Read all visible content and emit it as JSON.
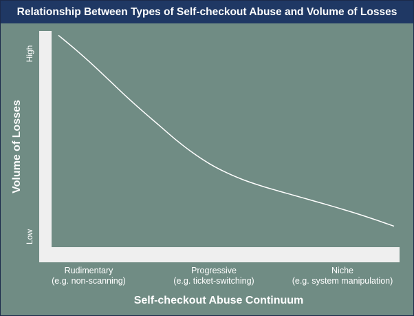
{
  "colors": {
    "title_bar": "#1f3864",
    "plot_background": "#708c84",
    "axis_bar": "#efefef",
    "curve": "#ffffff",
    "text": "#ffffff",
    "tick_text": "#ffffff"
  },
  "chart_data": {
    "type": "line",
    "title": "Relationship Between Types of Self-checkout Abuse and Volume of Losses",
    "xlabel": "Self-checkout Abuse Continuum",
    "ylabel": "Volume of Losses",
    "x_categories": [
      {
        "line1": "Rudimentary",
        "line2": "(e.g. non-scanning)"
      },
      {
        "line1": "Progressive",
        "line2": "(e.g. ticket-switching)"
      },
      {
        "line1": "Niche",
        "line2": "(e.g. system manipulation)"
      }
    ],
    "y_ticks": [
      "Low",
      "High"
    ],
    "xlim": [
      0,
      1
    ],
    "ylim": [
      0,
      1
    ],
    "grid": false,
    "series": [
      {
        "x": [
          0,
          0.05,
          0.1,
          0.15,
          0.2,
          0.25,
          0.3,
          0.35,
          0.4,
          0.45,
          0.5,
          0.55,
          0.6,
          0.65,
          0.7,
          0.75,
          0.8,
          0.85,
          0.9,
          0.95,
          1
        ],
        "y": [
          0.98,
          0.915,
          0.846,
          0.773,
          0.699,
          0.629,
          0.562,
          0.495,
          0.435,
          0.384,
          0.343,
          0.31,
          0.283,
          0.26,
          0.238,
          0.216,
          0.194,
          0.171,
          0.147,
          0.121,
          0.094
        ]
      }
    ]
  }
}
